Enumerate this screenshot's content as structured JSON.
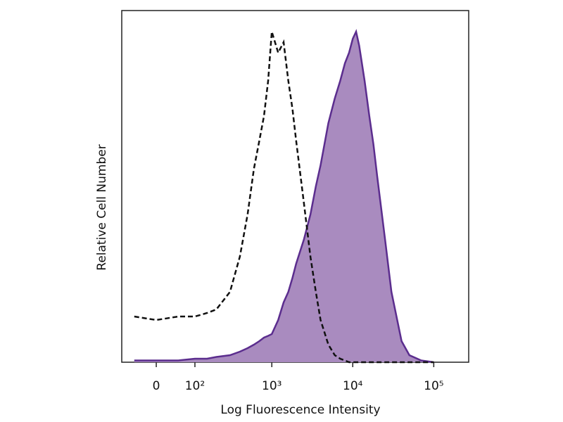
{
  "chart_data": {
    "type": "histogram-overlay",
    "xlabel": "Log Fluorescence Intensity",
    "ylabel": "Relative Cell Number",
    "xscale": "biexponential",
    "xlim": [
      -86,
      270000
    ],
    "ylim": [
      0,
      100
    ],
    "xticks": [
      0,
      {
        "value": 100,
        "label": "10²"
      },
      {
        "value": 1000,
        "label": "10³"
      },
      {
        "value": 10000,
        "label": "10⁴"
      },
      {
        "value": 100000,
        "label": "10⁵"
      }
    ],
    "x": [
      -50,
      0,
      50,
      100,
      150,
      200,
      300,
      400,
      500,
      600,
      700,
      800,
      900,
      1000,
      1200,
      1400,
      1600,
      1800,
      2000,
      2500,
      3000,
      3500,
      4000,
      5000,
      6000,
      7000,
      8000,
      9000,
      10000,
      11000,
      12000,
      14000,
      16000,
      18000,
      20000,
      25000,
      30000,
      40000,
      50000,
      70000,
      100000
    ],
    "series": [
      {
        "style": "filled",
        "color": "#5b2d8e",
        "fill": "#a98bbf",
        "values": [
          0.5,
          0.5,
          0.5,
          1,
          1,
          1.5,
          2,
          3,
          4,
          5,
          6,
          7,
          7.5,
          8,
          12,
          17,
          20,
          24,
          28,
          35,
          42,
          50,
          56,
          68,
          75,
          80,
          85,
          88,
          92,
          94,
          90,
          80,
          70,
          62,
          53,
          35,
          20,
          6,
          2,
          0.5,
          0
        ]
      },
      {
        "style": "dashed",
        "color": "#111111",
        "values": [
          13,
          12,
          13,
          13,
          14,
          15,
          20,
          30,
          42,
          55,
          63,
          70,
          80,
          94,
          88,
          91,
          80,
          72,
          63,
          45,
          30,
          20,
          12,
          5,
          2,
          1,
          0.5,
          0,
          0,
          0,
          0,
          0,
          0,
          0,
          0,
          0,
          0,
          0,
          0,
          0,
          0
        ]
      }
    ]
  }
}
